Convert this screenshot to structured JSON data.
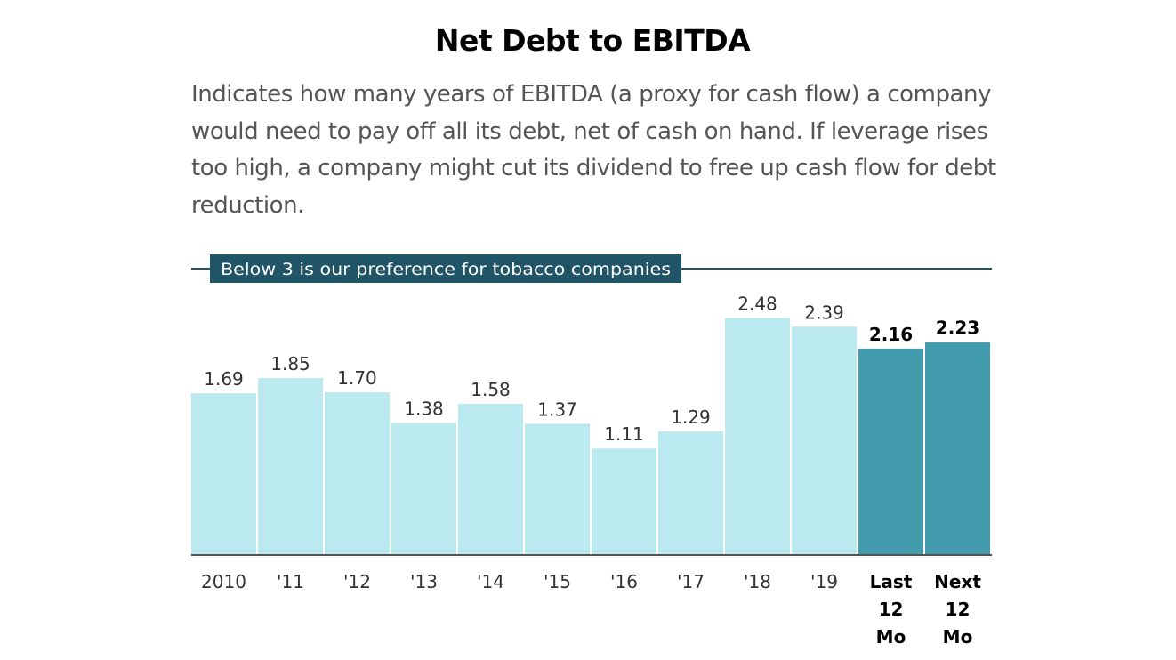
{
  "title": "Net Debt to EBITDA",
  "description": "Indicates how many years of EBITDA (a proxy for cash flow) a company would need to pay off all its debt, net of cash on hand. If leverage rises too high, a company might cut its dividend to free up cash flow for debt reduction.",
  "colors": {
    "historical_bar": "#bbe9f0",
    "forecast_bar": "#439bae",
    "reference_line": "#1f5566",
    "reference_label_bg": "#1f5566",
    "reference_label_text": "#ffffff",
    "axis": "#555555"
  },
  "chart_data": {
    "type": "bar",
    "title": "Net Debt to EBITDA",
    "xlabel": "",
    "ylabel": "",
    "ylim": [
      0,
      3
    ],
    "grid": false,
    "categories": [
      "2010",
      "'11",
      "'12",
      "'13",
      "'14",
      "'15",
      "'16",
      "'17",
      "'18",
      "'19",
      "Last 12 Mo",
      "Next 12 Mo"
    ],
    "category_lines": [
      [
        "2010"
      ],
      [
        "'11"
      ],
      [
        "'12"
      ],
      [
        "'13"
      ],
      [
        "'14"
      ],
      [
        "'15"
      ],
      [
        "'16"
      ],
      [
        "'17"
      ],
      [
        "'18"
      ],
      [
        "'19"
      ],
      [
        "Last",
        "12",
        "Mo"
      ],
      [
        "Next",
        "12",
        "Mo"
      ]
    ],
    "values": [
      1.69,
      1.85,
      1.7,
      1.38,
      1.58,
      1.37,
      1.11,
      1.29,
      2.48,
      2.39,
      2.16,
      2.23
    ],
    "value_labels": [
      "1.69",
      "1.85",
      "1.70",
      "1.38",
      "1.58",
      "1.37",
      "1.11",
      "1.29",
      "2.48",
      "2.39",
      "2.16",
      "2.23"
    ],
    "highlighted": [
      false,
      false,
      false,
      false,
      false,
      false,
      false,
      false,
      false,
      false,
      true,
      true
    ],
    "reference_line": {
      "value": 3,
      "label": "Below 3 is our preference for tobacco companies"
    }
  }
}
